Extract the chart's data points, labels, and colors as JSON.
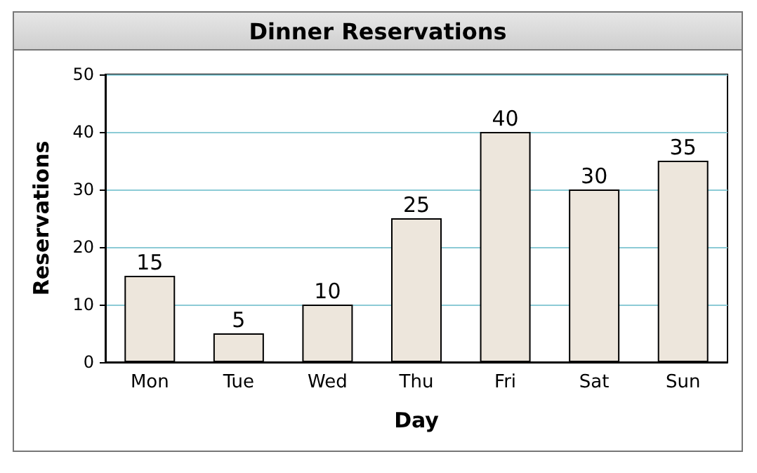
{
  "chart_data": {
    "type": "bar",
    "title": "Dinner Reservations",
    "xlabel": "Day",
    "ylabel": "Reservations",
    "categories": [
      "Mon",
      "Tue",
      "Wed",
      "Thu",
      "Fri",
      "Sat",
      "Sun"
    ],
    "values": [
      15,
      5,
      10,
      25,
      40,
      30,
      35
    ],
    "color": "#ede6dc",
    "ylim": [
      0,
      50
    ],
    "yticks": [
      0,
      10,
      20,
      30,
      40,
      50
    ],
    "grid": "y",
    "data_labels": true
  }
}
